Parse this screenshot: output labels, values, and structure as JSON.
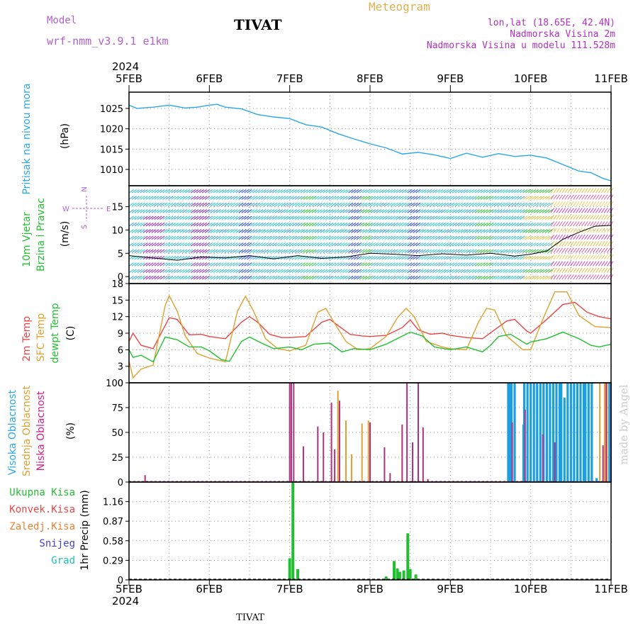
{
  "header": {
    "model_label": "Model",
    "model_name": "wrf-nmm_v3.9.1 e1km",
    "station": "TIVAT",
    "product": "Meteogram",
    "coords": "lon,lat (18.65E, 42.4N)",
    "elevation": "Nadmorska Visina 2m",
    "model_elevation": "Nadmorska Visina u modelu 111.528m",
    "credit": "made by Angel"
  },
  "time_axis": {
    "year": "2024",
    "ticks": [
      "5FEB",
      "6FEB",
      "7FEB",
      "8FEB",
      "9FEB",
      "10FEB",
      "11FEB"
    ]
  },
  "chart_data": [
    {
      "id": "pressure",
      "type": "line",
      "ylabel_lines": [
        "Pritisak na nivou mora",
        "(hPa)"
      ],
      "yticks": [
        "1010",
        "1015",
        "1020",
        "1025"
      ],
      "ylim": [
        1006,
        1029
      ],
      "x_unit": "days since 5FEB 00",
      "series": [
        {
          "color": "#2aa7e8",
          "x": [
            0,
            0.1,
            0.3,
            0.5,
            0.7,
            0.85,
            1.0,
            1.1,
            1.2,
            1.4,
            1.6,
            1.8,
            2.0,
            2.2,
            2.4,
            2.6,
            2.8,
            3.0,
            3.2,
            3.4,
            3.6,
            3.8,
            4.0,
            4.2,
            4.4,
            4.6,
            4.8,
            5.0,
            5.2,
            5.4,
            5.6,
            5.75,
            5.9,
            6.0
          ],
          "values": [
            1025.8,
            1025,
            1025.3,
            1025.8,
            1025.1,
            1025.3,
            1025.8,
            1026,
            1025.3,
            1024.9,
            1023.5,
            1022.9,
            1022.5,
            1021,
            1020.4,
            1018.8,
            1017.5,
            1016.3,
            1015.3,
            1013.8,
            1014.2,
            1013.6,
            1012.7,
            1014,
            1013,
            1013.9,
            1013.2,
            1013.5,
            1012.8,
            1011.2,
            1009.6,
            1009.2,
            1007.8,
            1007.2
          ]
        }
      ]
    },
    {
      "id": "wind",
      "type": "line",
      "ylabel_lines": [
        "10m Vjetar",
        "Brzina i Pravac",
        "(m/s)"
      ],
      "compass": [
        "N",
        "E",
        "S",
        "W"
      ],
      "yticks": [
        "0",
        "5",
        "10",
        "15"
      ],
      "ylim": [
        -1.5,
        19.5
      ],
      "series": [
        {
          "color": "#888888",
          "x": [
            0,
            0.3,
            0.6,
            0.9,
            1.2,
            1.5,
            1.8,
            2.1,
            2.4,
            2.7,
            3.0,
            3.3,
            3.6,
            3.9,
            4.2,
            4.5,
            4.8,
            5.0,
            5.2,
            5.4,
            5.6,
            5.8,
            6.0
          ],
          "values": [
            4.5,
            4.0,
            3.5,
            4.2,
            4.0,
            4.5,
            3.8,
            4.5,
            3.9,
            4.2,
            5.0,
            4.8,
            4.5,
            4.9,
            4.6,
            5.0,
            4.4,
            4.8,
            5.5,
            8.0,
            9.5,
            10.8,
            11.0
          ]
        }
      ]
    },
    {
      "id": "temperature",
      "type": "line",
      "ylabel_lines": [
        "2m Temp",
        "SFC Temp",
        "dewpt Temp",
        "(C)"
      ],
      "yticks": [
        "0",
        "3",
        "6",
        "9",
        "12",
        "15",
        "18"
      ],
      "ylim": [
        0,
        18
      ],
      "series": [
        {
          "name": "2m Temp",
          "color": "#e84646",
          "x": [
            0,
            0.05,
            0.15,
            0.3,
            0.5,
            0.6,
            0.75,
            0.9,
            1.0,
            1.2,
            1.4,
            1.5,
            1.6,
            1.75,
            1.9,
            2.0,
            2.2,
            2.4,
            2.5,
            2.6,
            2.75,
            2.9,
            3.0,
            3.2,
            3.4,
            3.5,
            3.6,
            3.75,
            3.9,
            4.0,
            4.2,
            4.4,
            4.55,
            4.7,
            4.8,
            4.95,
            5.0,
            5.2,
            5.4,
            5.55,
            5.7,
            5.85,
            6.0
          ],
          "values": [
            7.5,
            9,
            6.8,
            6.2,
            11.8,
            11.5,
            8.7,
            8.8,
            8.4,
            8.0,
            11,
            12,
            11,
            8.8,
            8.2,
            8.2,
            8.4,
            11,
            11.5,
            10.4,
            8.8,
            8.5,
            8.4,
            8.6,
            10,
            11.4,
            9.6,
            8.8,
            9.0,
            8.6,
            8.2,
            8.0,
            9.6,
            11.2,
            11.5,
            9.4,
            9.0,
            11.5,
            14.2,
            14.6,
            12.8,
            12.0,
            11.6
          ]
        },
        {
          "name": "SFC Temp",
          "color": "#e0a030",
          "x": [
            0,
            0.05,
            0.15,
            0.3,
            0.45,
            0.5,
            0.6,
            0.7,
            0.85,
            1.0,
            1.2,
            1.35,
            1.45,
            1.55,
            1.7,
            1.85,
            2.0,
            2.2,
            2.35,
            2.45,
            2.55,
            2.7,
            2.85,
            3.0,
            3.2,
            3.35,
            3.45,
            3.55,
            3.7,
            3.9,
            4.0,
            4.2,
            4.35,
            4.45,
            4.55,
            4.7,
            4.9,
            5.0,
            5.15,
            5.3,
            5.45,
            5.6,
            5.8,
            6.0
          ],
          "values": [
            4,
            0.9,
            2.5,
            3.2,
            14,
            15.8,
            13,
            8.5,
            5.3,
            4.5,
            3.8,
            13,
            15.7,
            13,
            8,
            6.2,
            5.8,
            6.8,
            12.8,
            13.5,
            11,
            7.5,
            6.0,
            6.2,
            8.4,
            12,
            13.5,
            12,
            7.5,
            6.5,
            6.2,
            6.0,
            11,
            13.5,
            13.2,
            8.5,
            6.0,
            6.0,
            11.5,
            16.5,
            16.5,
            12.2,
            10.2,
            10
          ]
        },
        {
          "name": "dewpt Temp",
          "color": "#22c030",
          "x": [
            0,
            0.05,
            0.15,
            0.3,
            0.45,
            0.6,
            0.75,
            0.9,
            1.0,
            1.15,
            1.25,
            1.4,
            1.5,
            1.65,
            1.8,
            2.0,
            2.15,
            2.3,
            2.5,
            2.65,
            2.8,
            3.0,
            3.2,
            3.5,
            3.65,
            3.8,
            4.0,
            4.2,
            4.4,
            4.5,
            4.6,
            4.75,
            4.95,
            5.0,
            5.2,
            5.4,
            5.6,
            5.75,
            5.85,
            6.0
          ],
          "values": [
            6,
            4.6,
            5.0,
            3.8,
            8.3,
            7.8,
            6.5,
            6.5,
            5.8,
            4.2,
            3.9,
            7.5,
            8.3,
            7.2,
            6.2,
            6.5,
            6.0,
            7.0,
            7.2,
            5.6,
            6.2,
            6.0,
            7.0,
            9.2,
            8.5,
            6.5,
            6.0,
            6.5,
            5.6,
            6.8,
            8.4,
            8.8,
            7.0,
            7.4,
            8.0,
            9.2,
            8.0,
            6.8,
            6.5,
            7.0
          ]
        }
      ]
    },
    {
      "id": "clouds",
      "type": "bar",
      "ylabel_lines": [
        "Visoka Oblacnost",
        "Srednja Oblacnost",
        "Niska Oblacnost",
        "(%)"
      ],
      "yticks": [
        "0",
        "25",
        "50",
        "75",
        "100"
      ],
      "ylim": [
        0,
        100
      ],
      "series": [
        {
          "name": "Visoka Oblacnost",
          "color": "#1aa0e0",
          "x": [
            4.72,
            4.74,
            4.76,
            4.8,
            4.91,
            4.92,
            4.96,
            5.0,
            5.04,
            5.08,
            5.12,
            5.16,
            5.2,
            5.24,
            5.28,
            5.32,
            5.36,
            5.38,
            5.42,
            5.46,
            5.5,
            5.54,
            5.58,
            5.62,
            5.66,
            5.68,
            5.72,
            5.76,
            5.82,
            5.98
          ],
          "values": [
            100,
            100,
            100,
            100,
            58,
            100,
            100,
            100,
            100,
            100,
            100,
            100,
            100,
            100,
            100,
            100,
            100,
            100,
            85,
            100,
            100,
            100,
            100,
            100,
            100,
            100,
            100,
            100,
            4,
            100
          ]
        },
        {
          "name": "Srednja Oblacnost",
          "color": "#e0a030",
          "x": [
            2.6,
            2.7,
            2.77,
            2.9,
            2.98,
            5.86,
            5.92,
            5.95,
            6.0
          ],
          "values": [
            92,
            62,
            28,
            59,
            62,
            100,
            100,
            100,
            100
          ]
        },
        {
          "name": "Niska Oblacnost",
          "color": "#b03080",
          "x": [
            0.2,
            2.0,
            2.02,
            2.05,
            2.17,
            2.35,
            2.42,
            2.52,
            2.56,
            2.62,
            3.0,
            3.18,
            3.25,
            3.4,
            3.46,
            3.53,
            3.6,
            3.66,
            3.72,
            4.77,
            4.93,
            5.15,
            5.3,
            5.9,
            5.94,
            6.0
          ],
          "values": [
            7,
            100,
            100,
            100,
            36,
            56,
            50,
            80,
            33,
            82,
            60,
            35,
            9,
            58,
            100,
            40,
            100,
            55,
            3,
            60,
            73,
            48,
            40,
            37,
            100,
            100
          ]
        }
      ]
    },
    {
      "id": "precip",
      "type": "bar",
      "ylabel_lines": [
        "1hr Precip (mm)"
      ],
      "yticks": [
        "0",
        "0.29",
        "0.58",
        "0.87",
        "1.16"
      ],
      "ylim": [
        0,
        1.45
      ],
      "legend": [
        {
          "label": "Ukupna Kisa",
          "color": "#22c030"
        },
        {
          "label": "Konvek.Kisa",
          "color": "#e84646"
        },
        {
          "label": "Zaledj.Kisa",
          "color": "#f08030"
        },
        {
          "label": "Snijeg",
          "color": "#4040e0"
        },
        {
          "label": "Grad",
          "color": "#20c0c0"
        }
      ],
      "series": [
        {
          "name": "Ukupna Kisa",
          "color": "#22c030",
          "x": [
            2.0,
            2.04,
            2.1,
            3.2,
            3.3,
            3.34,
            3.37,
            3.42,
            3.47,
            3.5,
            3.57
          ],
          "values": [
            0.32,
            1.44,
            0.16,
            0.05,
            0.28,
            0.17,
            0.12,
            0.14,
            0.69,
            0.16,
            0.08
          ]
        }
      ]
    }
  ],
  "footer": {
    "ticks": [
      "5FEB",
      "6FEB",
      "7FEB",
      "8FEB",
      "9FEB",
      "10FEB",
      "11FEB"
    ],
    "year": "2024",
    "station": "TIVAT"
  }
}
